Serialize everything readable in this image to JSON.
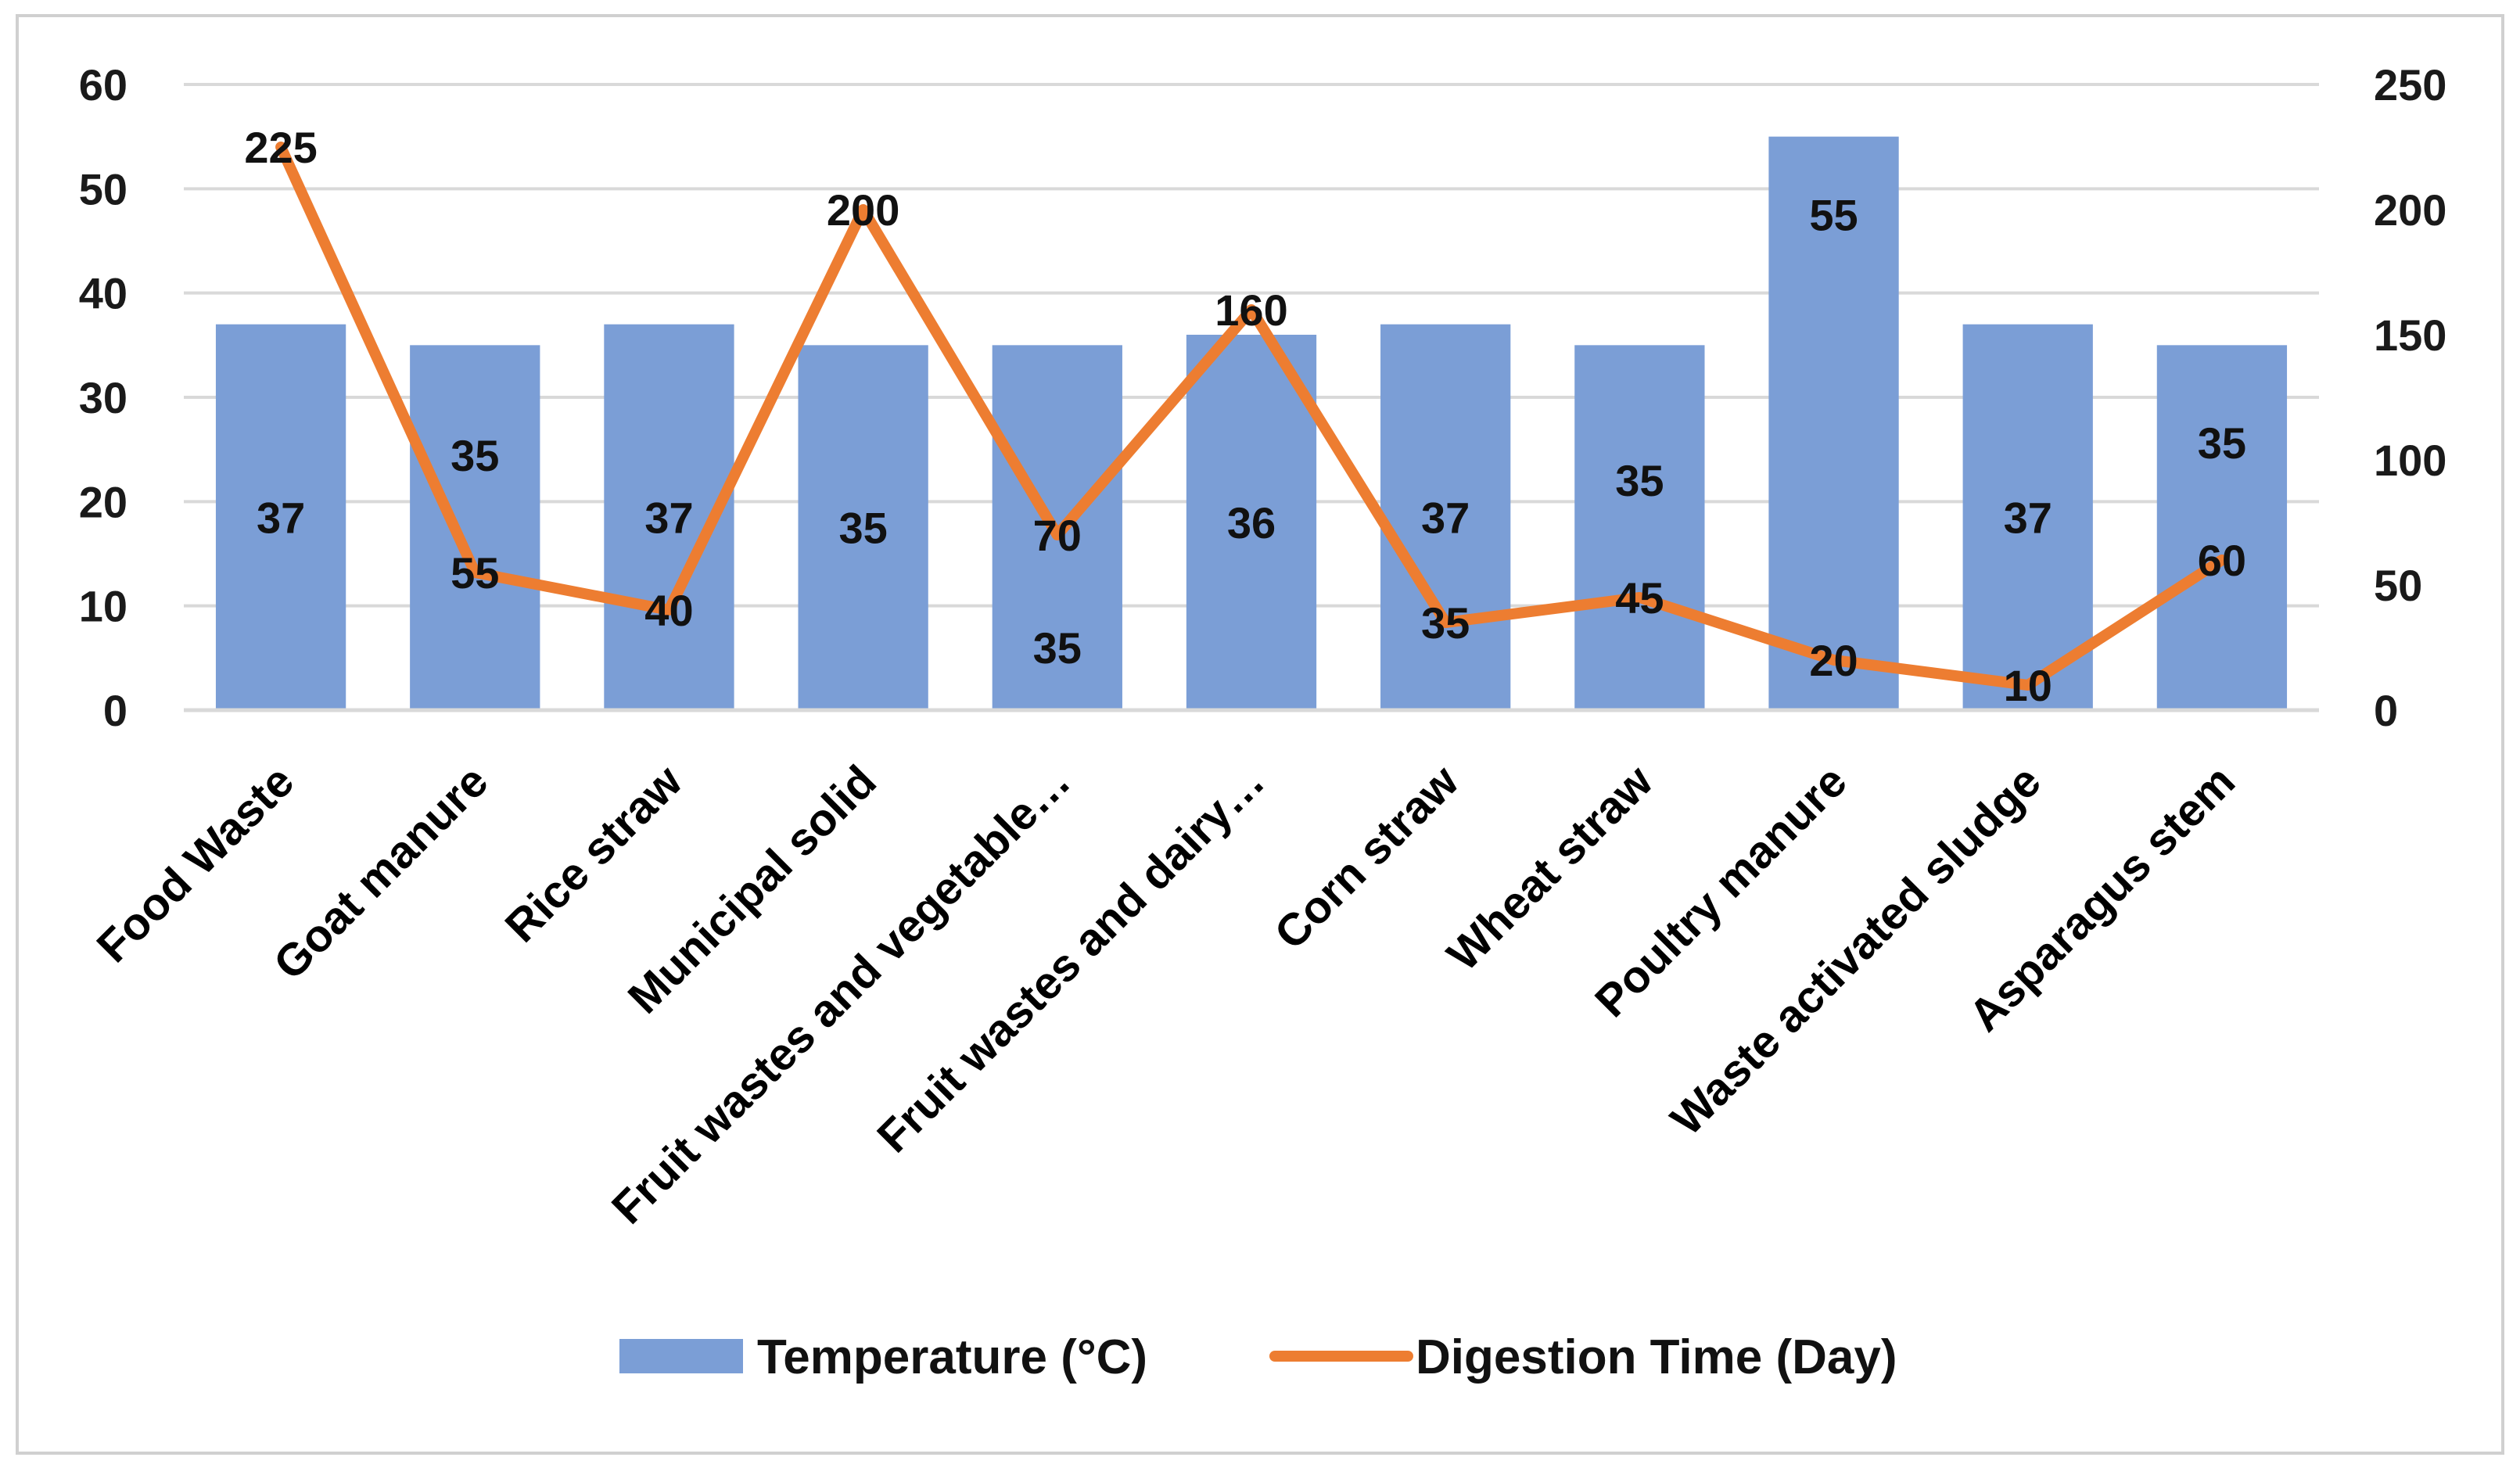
{
  "chart_data": {
    "type": "bar",
    "title": "",
    "xlabel": "",
    "ylabel": "",
    "y2label": "",
    "categories": [
      "Food Waste",
      "Goat manure",
      "Rice straw",
      "Municipal solid",
      "Fruit wastes and vegetable…",
      "Fruit wastes and dairy…",
      "Corn straw",
      "Wheat straw",
      "Poultry manure",
      "Waste activated sludge",
      "Asparagus stem"
    ],
    "series": [
      {
        "name": "Temperature (°C)",
        "type": "bar",
        "axis": "left",
        "color": "#7B9ED6",
        "values": [
          37,
          35,
          37,
          35,
          35,
          36,
          37,
          35,
          55,
          37,
          35
        ]
      },
      {
        "name": "Digestion Time (Day)",
        "type": "line",
        "axis": "right",
        "color": "#ED7D31",
        "values": [
          225,
          55,
          40,
          200,
          70,
          160,
          35,
          45,
          20,
          10,
          60
        ]
      }
    ],
    "ylim": [
      0,
      60
    ],
    "y_ticks": [
      "0",
      "10",
      "20",
      "30",
      "40",
      "50",
      "60"
    ],
    "y2lim": [
      0,
      250
    ],
    "y2_ticks": [
      "0",
      "50",
      "100",
      "150",
      "200",
      "250"
    ],
    "grid": true,
    "legend_position": "bottom"
  }
}
